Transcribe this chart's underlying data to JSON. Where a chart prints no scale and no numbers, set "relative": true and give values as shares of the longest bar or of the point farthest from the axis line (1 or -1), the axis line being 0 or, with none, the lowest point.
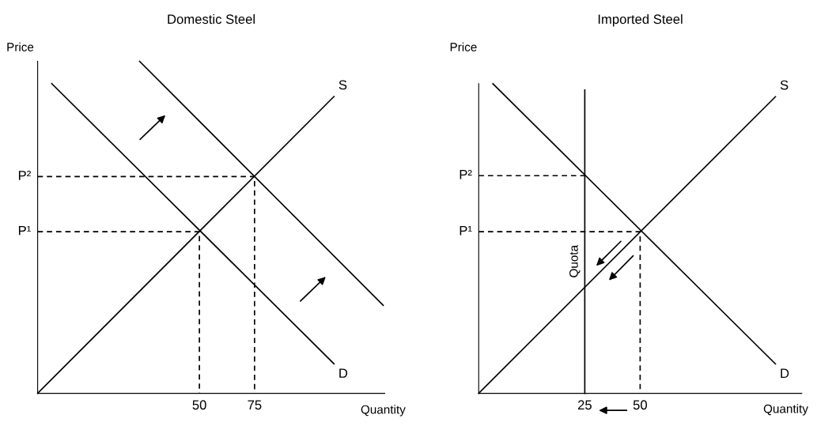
{
  "chart_data": [
    {
      "type": "line",
      "title": "Domestic Steel",
      "xlabel": "Quantity",
      "ylabel": "Price",
      "xlim": [
        -23.3,
        134
      ],
      "xticks": [
        50,
        75
      ],
      "relative": true,
      "grid": false,
      "series": [
        {
          "name": "S",
          "color": "#000000",
          "x": [
            -23.3,
            111.0
          ],
          "values": [
            0,
            0.894
          ]
        },
        {
          "name": "D",
          "color": "#000000",
          "x": [
            -16.9,
            111.0
          ],
          "values": [
            0.933,
            0.089
          ]
        },
        {
          "color": "#000000",
          "x": [
            22.9,
            133.3
          ],
          "values": [
            1,
            0.265
          ]
        },
        {
          "name": "P¹",
          "color": "#000000",
          "line_style": "dashed",
          "x": [
            -23.3,
            50,
            50
          ],
          "values": [
            0.487,
            0.487,
            0
          ]
        },
        {
          "name": "P²",
          "color": "#000000",
          "line_style": "dashed",
          "x": [
            -23.3,
            75,
            75
          ],
          "values": [
            0.653,
            0.653,
            0
          ]
        }
      ]
    },
    {
      "type": "line",
      "title": "Imported Steel",
      "xlabel": "Quantity",
      "ylabel": "Price",
      "xlim": [
        -22.9,
        123
      ],
      "xticks": [
        25,
        50
      ],
      "relative": true,
      "grid": false,
      "series": [
        {
          "name": "S",
          "color": "#000000",
          "x": [
            -22.9,
            111.1
          ],
          "values": [
            0,
            0.958
          ]
        },
        {
          "name": "D",
          "color": "#000000",
          "x": [
            -16.5,
            111.1
          ],
          "values": [
            1,
            0.095
          ]
        },
        {
          "name": "Quota",
          "color": "#000000",
          "x": [
            25,
            25
          ],
          "values": [
            0,
            0.98
          ]
        },
        {
          "name": "P¹",
          "color": "#000000",
          "line_style": "dashed",
          "x": [
            -22.9,
            50,
            50
          ],
          "values": [
            0.522,
            0.522,
            0
          ]
        },
        {
          "name": "P²",
          "color": "#000000",
          "line_style": "dashed",
          "x": [
            -22.9,
            25
          ],
          "values": [
            0.703,
            0.703
          ]
        }
      ]
    }
  ]
}
